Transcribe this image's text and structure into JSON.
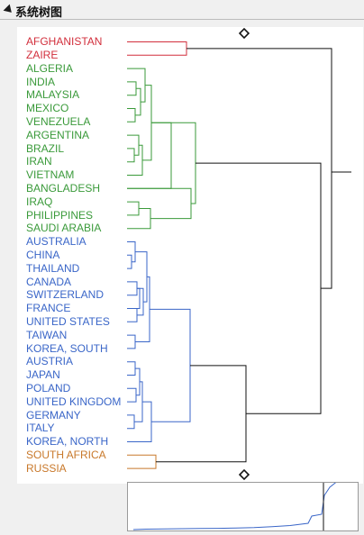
{
  "title": "系统树图",
  "colors": {
    "red": "#d22f3c",
    "green": "#3a9a3a",
    "blue": "#3a66c8",
    "orange": "#c8782a",
    "black": "#111111"
  },
  "leaves": [
    {
      "label": "AFGHANISTAN",
      "cluster": "red"
    },
    {
      "label": "ZAIRE",
      "cluster": "red"
    },
    {
      "label": "ALGERIA",
      "cluster": "green"
    },
    {
      "label": "INDIA",
      "cluster": "green"
    },
    {
      "label": "MALAYSIA",
      "cluster": "green"
    },
    {
      "label": "MEXICO",
      "cluster": "green"
    },
    {
      "label": "VENEZUELA",
      "cluster": "green"
    },
    {
      "label": "ARGENTINA",
      "cluster": "green"
    },
    {
      "label": "BRAZIL",
      "cluster": "green"
    },
    {
      "label": "IRAN",
      "cluster": "green"
    },
    {
      "label": "VIETNAM",
      "cluster": "green"
    },
    {
      "label": "BANGLADESH",
      "cluster": "green"
    },
    {
      "label": "IRAQ",
      "cluster": "green"
    },
    {
      "label": "PHILIPPINES",
      "cluster": "green"
    },
    {
      "label": "SAUDI ARABIA",
      "cluster": "green"
    },
    {
      "label": "AUSTRALIA",
      "cluster": "blue"
    },
    {
      "label": "CHINA",
      "cluster": "blue"
    },
    {
      "label": "THAILAND",
      "cluster": "blue"
    },
    {
      "label": "CANADA",
      "cluster": "blue"
    },
    {
      "label": "SWITZERLAND",
      "cluster": "blue"
    },
    {
      "label": "FRANCE",
      "cluster": "blue"
    },
    {
      "label": "UNITED STATES",
      "cluster": "blue"
    },
    {
      "label": "TAIWAN",
      "cluster": "blue"
    },
    {
      "label": "KOREA, SOUTH",
      "cluster": "blue"
    },
    {
      "label": "AUSTRIA",
      "cluster": "blue"
    },
    {
      "label": "JAPAN",
      "cluster": "blue"
    },
    {
      "label": "POLAND",
      "cluster": "blue"
    },
    {
      "label": "UNITED KINGDOM",
      "cluster": "blue"
    },
    {
      "label": "GERMANY",
      "cluster": "blue"
    },
    {
      "label": "ITALY",
      "cluster": "blue"
    },
    {
      "label": "KOREA, NORTH",
      "cluster": "blue"
    },
    {
      "label": "SOUTH AFRICA",
      "cluster": "orange"
    },
    {
      "label": "RUSSIA",
      "cluster": "orange"
    }
  ]
}
